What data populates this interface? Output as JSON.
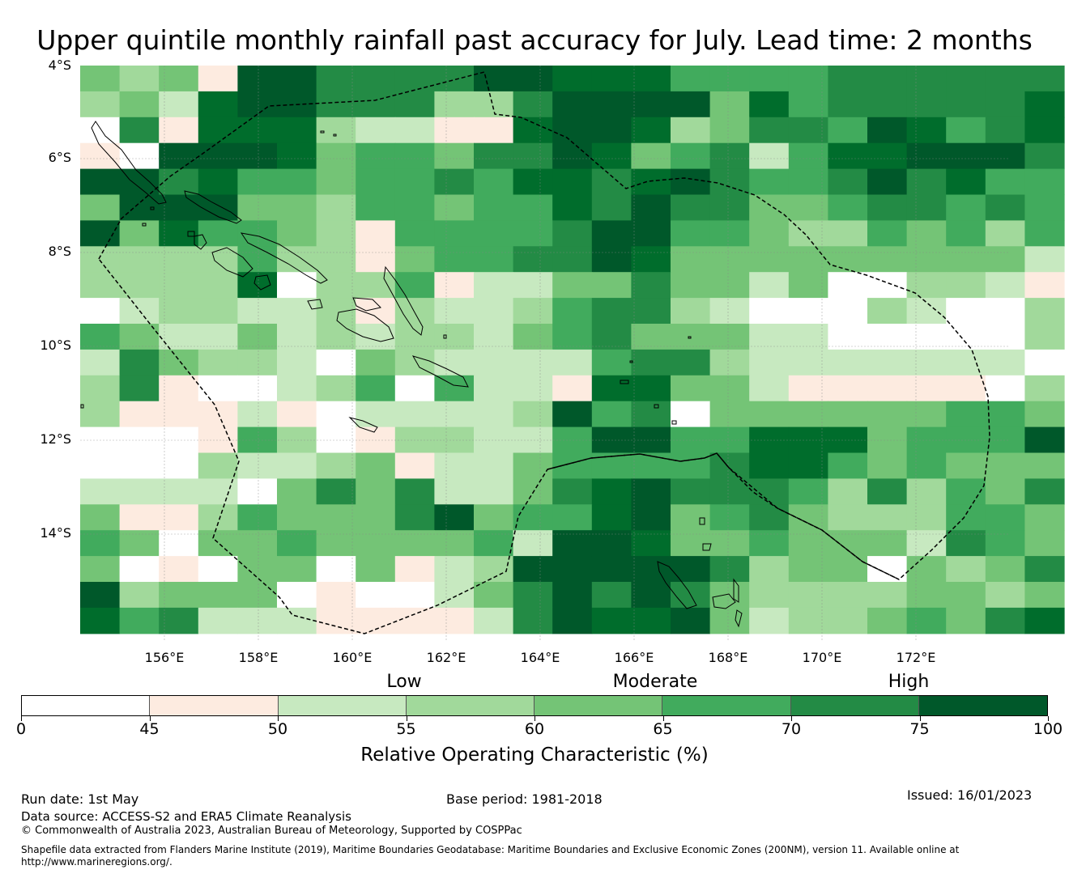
{
  "title": "Upper quintile monthly rainfall past accuracy for July. Lead time: 2 months",
  "map": {
    "lat_labels": [
      "4°S",
      "6°S",
      "8°S",
      "10°S",
      "12°S",
      "14°S"
    ],
    "lon_labels": [
      "156°E",
      "158°E",
      "160°E",
      "162°E",
      "164°E",
      "166°E",
      "168°E",
      "170°E",
      "172°E"
    ],
    "grid": [
      "4341886666887775555666666",
      "3427886663368888475666667",
      "0617773221178873466587567",
      "1088874554668745625778886",
      "8867554556577678655686755",
      "4888443554557686644566565",
      "8475543155556885543354535",
      "3333533145566874444444442",
      "3333703351224464424003321",
      "0233223132235663200032003",
      "5422423233245644422000003",
      "2643320432222566322222220",
      "3610023505221774421111103",
      "3111210222238560444444554",
      "0001530133225885577745558",
      "0003223412245555677545444",
      "2222046462246786665363546",
      "4113544468455784564333554",
      "5404454444528874454442654",
      "4010440412388888634404346",
      "8344401002468686433334434",
      "7562221111268778423345467"
    ],
    "colors": {
      "0": "#ffffff",
      "1": "#fdebe0",
      "2": "#c7e9c0",
      "3": "#a1d99b",
      "4": "#74c476",
      "5": "#41ab5d",
      "6": "#238b45",
      "7": "#006d2c",
      "8": "#00582a"
    }
  },
  "legend": {
    "categories": [
      "Low",
      "Moderate",
      "High"
    ],
    "ticks": [
      "0",
      "45",
      "50",
      "55",
      "60",
      "65",
      "70",
      "75",
      "100"
    ],
    "segments": [
      {
        "from": 0,
        "to": 45,
        "color": "#ffffff"
      },
      {
        "from": 45,
        "to": 50,
        "color": "#fdebe0"
      },
      {
        "from": 50,
        "to": 55,
        "color": "#c7e9c0"
      },
      {
        "from": 55,
        "to": 60,
        "color": "#a1d99b"
      },
      {
        "from": 60,
        "to": 65,
        "color": "#74c476"
      },
      {
        "from": 65,
        "to": 70,
        "color": "#41ab5d"
      },
      {
        "from": 70,
        "to": 75,
        "color": "#238b45"
      },
      {
        "from": 75,
        "to": 100,
        "color": "#00582a"
      }
    ],
    "label": "Relative Operating Characteristic (%)"
  },
  "footer": {
    "run_date": "Run date: 1st May",
    "base_period": "Base period: 1981-2018",
    "issued": "Issued: 16/01/2023",
    "data_source": "Data source: ACCESS-S2 and ERA5 Climate Reanalysis",
    "copyright": "© Commonwealth of Australia 2023, Australian Bureau of Meteorology, Supported by COSPPac",
    "shapefile_1": "Shapefile data extracted from Flanders Marine Institute (2019), Maritime Boundaries Geodatabase: Maritime Boundaries and Exclusive Economic Zones (200NM), version 11. Available online at",
    "shapefile_2": "http://www.marineregions.org/."
  }
}
